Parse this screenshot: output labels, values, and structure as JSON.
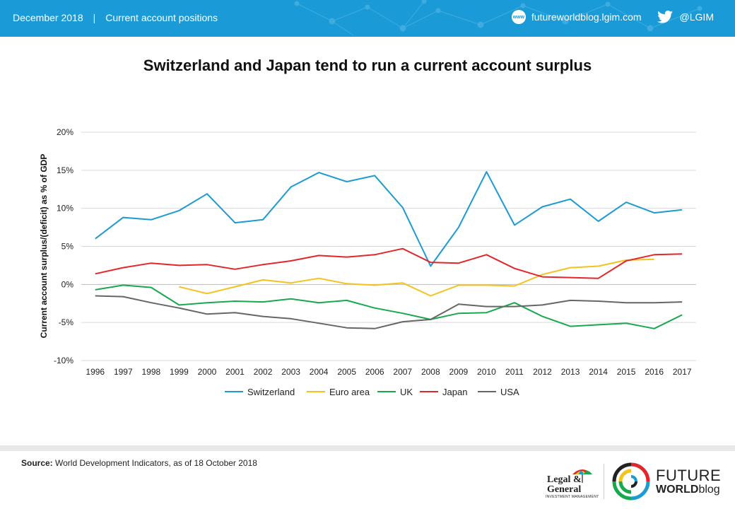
{
  "header": {
    "date": "December 2018",
    "separator": "|",
    "topic": "Current account positions",
    "website": "futureworldblog.lgim.com",
    "www_icon": "www",
    "twitter_handle": "@LGIM",
    "bg_color": "#1a9bd7"
  },
  "footer": {
    "source_label": "Source:",
    "source_text": " World Development Indicators, as of 18 October 2018",
    "lg_logo_line1": "Legal &",
    "lg_logo_line2": "General",
    "lg_logo_sub": "INVESTMENT MANAGEMENT",
    "fw_logo_line1": "FUTURE",
    "fw_logo_line2a": "WORLD",
    "fw_logo_line2b": "blog"
  },
  "chart_data": {
    "type": "line",
    "title": "Switzerland and Japan tend to run a current account surplus",
    "ylabel": "Current account surplus/(deficit)  as % of GDP",
    "xlabel": "",
    "ylim": [
      -10,
      20
    ],
    "yticks": [
      20,
      15,
      10,
      5,
      0,
      -5,
      -10
    ],
    "ytick_labels": [
      "20%",
      "15%",
      "10%",
      "5%",
      "0%",
      "-5%",
      "-10%"
    ],
    "grid": true,
    "legend_position": "bottom",
    "x": [
      "1996",
      "1997",
      "1998",
      "1999",
      "2000",
      "2001",
      "2002",
      "2003",
      "2004",
      "2005",
      "2006",
      "2007",
      "2008",
      "2009",
      "2010",
      "2011",
      "2012",
      "2013",
      "2014",
      "2015",
      "2016",
      "2017"
    ],
    "series": [
      {
        "name": "Switzerland",
        "color": "#1b9bd1",
        "values": [
          6.0,
          8.8,
          8.5,
          9.7,
          11.9,
          8.1,
          8.5,
          12.8,
          14.7,
          13.5,
          14.3,
          10.1,
          2.4,
          7.5,
          14.8,
          7.8,
          10.2,
          11.2,
          8.3,
          10.8,
          9.4,
          9.8
        ]
      },
      {
        "name": "Euro area",
        "color": "#f5c21d",
        "values": [
          null,
          null,
          null,
          -0.3,
          -1.2,
          -0.3,
          0.6,
          0.2,
          0.8,
          0.1,
          -0.1,
          0.2,
          -1.5,
          -0.1,
          -0.1,
          -0.2,
          1.3,
          2.2,
          2.4,
          3.2,
          3.3,
          null
        ]
      },
      {
        "name": "UK",
        "color": "#17a94e",
        "values": [
          -0.7,
          -0.1,
          -0.4,
          -2.7,
          -2.4,
          -2.2,
          -2.3,
          -1.9,
          -2.4,
          -2.1,
          -3.1,
          -3.8,
          -4.6,
          -3.8,
          -3.7,
          -2.4,
          -4.2,
          -5.5,
          -5.3,
          -5.1,
          -5.8,
          -4.0
        ]
      },
      {
        "name": "Japan",
        "color": "#e3262a",
        "values": [
          1.4,
          2.2,
          2.8,
          2.5,
          2.6,
          2.0,
          2.6,
          3.1,
          3.8,
          3.6,
          3.9,
          4.7,
          2.9,
          2.8,
          3.9,
          2.1,
          1.0,
          0.9,
          0.8,
          3.1,
          3.9,
          4.0
        ]
      },
      {
        "name": "USA",
        "color": "#666666",
        "values": [
          -1.5,
          -1.6,
          -2.4,
          -3.1,
          -3.9,
          -3.7,
          -4.2,
          -4.5,
          -5.1,
          -5.7,
          -5.8,
          -4.9,
          -4.6,
          -2.6,
          -2.9,
          -2.9,
          -2.7,
          -2.1,
          -2.2,
          -2.4,
          -2.4,
          -2.3
        ]
      }
    ]
  }
}
